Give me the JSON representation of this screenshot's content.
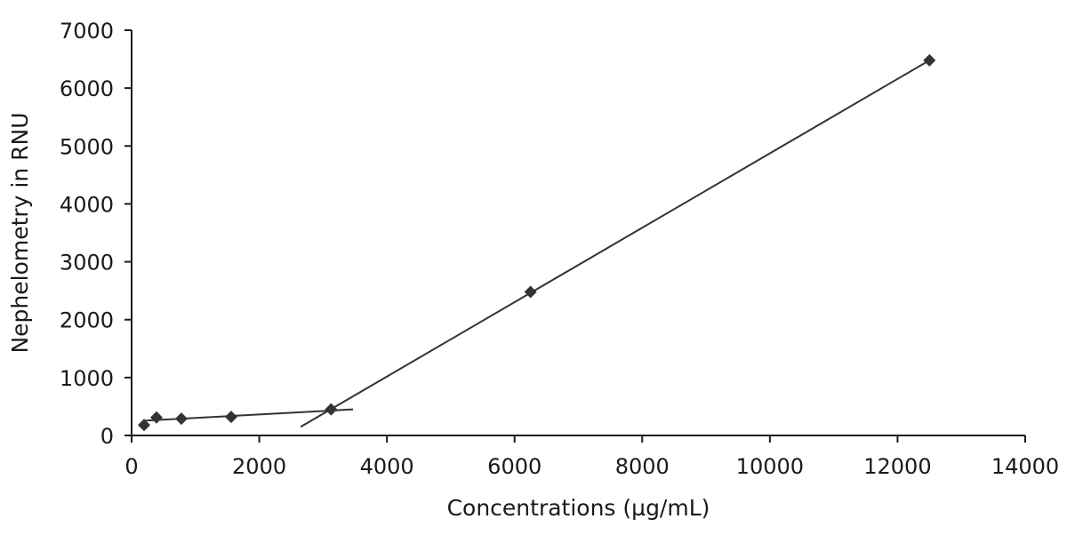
{
  "chart_data": {
    "type": "scatter",
    "title": "",
    "xlabel": "Concentrations (µg/mL)",
    "ylabel": "Nephelometry in RNU",
    "xlim": [
      0,
      14000
    ],
    "ylim": [
      0,
      7000
    ],
    "x_ticks": [
      0,
      2000,
      4000,
      6000,
      8000,
      10000,
      12000,
      14000
    ],
    "y_ticks": [
      0,
      1000,
      2000,
      3000,
      4000,
      5000,
      6000,
      7000
    ],
    "grid": false,
    "legend": "none",
    "marker": "diamond",
    "point_color": "#333333",
    "series": [
      {
        "x": [
          195,
          390,
          780,
          1560,
          3125,
          6250,
          12500
        ],
        "y": [
          180,
          310,
          290,
          320,
          450,
          2480,
          6480
        ]
      }
    ],
    "trendlines": [
      {
        "x": [
          195,
          3470
        ],
        "y": [
          255,
          450
        ]
      },
      {
        "x": [
          2650,
          12500
        ],
        "y": [
          150,
          6480
        ]
      }
    ]
  }
}
